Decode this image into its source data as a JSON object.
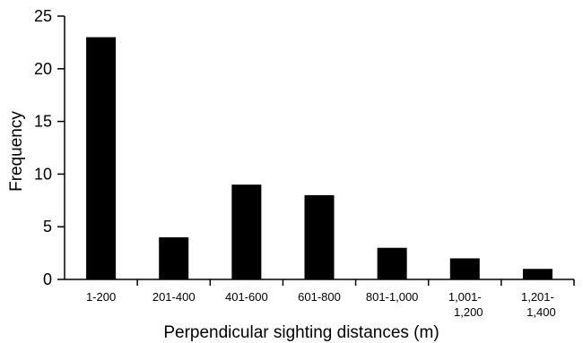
{
  "chart_data": {
    "type": "bar",
    "title": "",
    "xlabel": "Perpendicular sighting distances (m)",
    "ylabel": "Frequency",
    "categories": [
      [
        "1-200"
      ],
      [
        "201-400"
      ],
      [
        "401-600"
      ],
      [
        "601-800"
      ],
      [
        "801-1,000"
      ],
      [
        "1,001-",
        "1,200"
      ],
      [
        "1,201-",
        "1,400"
      ]
    ],
    "values": [
      23,
      4,
      9,
      8,
      3,
      2,
      1
    ],
    "ylim": [
      0,
      25
    ],
    "yticks": [
      "0",
      "5",
      "10",
      "15",
      "20",
      "25"
    ],
    "grid": false,
    "legend": "none",
    "bar_color": "#000000"
  }
}
